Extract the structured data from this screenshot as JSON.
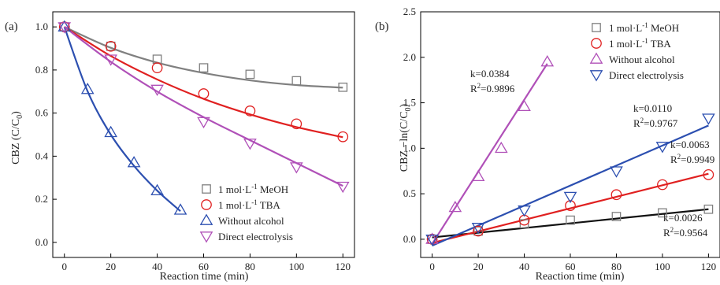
{
  "chart_data": [
    {
      "type": "line",
      "panel_label": "(a)",
      "xlabel": "Reaction time (min)",
      "ylabel_main": "CBZ (C/C",
      "ylabel_sub": "0",
      "ylabel_end": ")",
      "xlim": [
        -5,
        125
      ],
      "ylim": [
        -0.07,
        1.07
      ],
      "xticks": [
        0,
        20,
        40,
        60,
        80,
        100,
        120
      ],
      "xtick_labels": [
        "0",
        "20",
        "40",
        "60",
        "80",
        "100",
        "120"
      ],
      "yticks": [
        0.0,
        0.2,
        0.4,
        0.6,
        0.8,
        1.0
      ],
      "ytick_labels": [
        "0.0",
        "0.2",
        "0.4",
        "0.6",
        "0.8",
        "1.0"
      ],
      "legend_position": "lower-right",
      "series": [
        {
          "name": "1 mol·L",
          "name_sup": "-1",
          "name_end": " MeOH",
          "marker": "square",
          "color": "#808080",
          "x": [
            0,
            20,
            40,
            60,
            80,
            100,
            120
          ],
          "values": [
            1.0,
            0.91,
            0.85,
            0.81,
            0.78,
            0.75,
            0.72
          ],
          "fit": [
            1.0,
            0.903,
            0.834,
            0.786,
            0.752,
            0.73,
            0.718
          ]
        },
        {
          "name": "1 mol·L",
          "name_sup": "-1",
          "name_end": " TBA",
          "marker": "circle",
          "color": "#e02020",
          "x": [
            0,
            20,
            40,
            60,
            80,
            100,
            120
          ],
          "values": [
            1.0,
            0.91,
            0.81,
            0.69,
            0.61,
            0.55,
            0.49
          ],
          "fit": [
            1.0,
            0.865,
            0.756,
            0.666,
            0.594,
            0.535,
            0.488
          ]
        },
        {
          "name": "Without alcohol",
          "name_sup": "",
          "name_end": "",
          "marker": "triangle-up",
          "color": "#2c4fb0",
          "x": [
            0,
            10,
            20,
            30,
            40,
            50
          ],
          "values": [
            1.0,
            0.71,
            0.51,
            0.37,
            0.24,
            0.15
          ],
          "fit": [
            1.0,
            0.701,
            0.5,
            0.355,
            0.24,
            0.145
          ]
        },
        {
          "name": "Direct electrolysis",
          "name_sup": "",
          "name_end": "",
          "marker": "triangle-down",
          "color": "#b050b8",
          "x": [
            0,
            20,
            40,
            60,
            80,
            100,
            120
          ],
          "values": [
            1.0,
            0.85,
            0.71,
            0.56,
            0.46,
            0.35,
            0.26
          ],
          "fit": [
            1.0,
            0.838,
            0.7,
            0.581,
            0.474,
            0.368,
            0.262
          ]
        }
      ]
    },
    {
      "type": "scatter",
      "panel_label": "(b)",
      "xlabel": "Reaction time (min)",
      "ylabel_main": "CBZ  −ln(C/C",
      "ylabel_sub": "0",
      "ylabel_end": ")",
      "xlim": [
        -5,
        125
      ],
      "ylim": [
        -0.2,
        2.5
      ],
      "xticks": [
        0,
        20,
        40,
        60,
        80,
        100,
        120
      ],
      "xtick_labels": [
        "0",
        "20",
        "40",
        "60",
        "80",
        "100",
        "120"
      ],
      "yticks": [
        0.0,
        0.5,
        1.0,
        1.5,
        2.0,
        2.5
      ],
      "ytick_labels": [
        "0.0",
        "0.5",
        "1.0",
        "1.5",
        "2.0",
        "2.5"
      ],
      "legend_position": "top-right",
      "series": [
        {
          "name": "1 mol·L",
          "name_sup": "-1",
          "name_end": " MeOH",
          "marker": "square",
          "color": "#808080",
          "line_color": "#111111",
          "x": [
            0,
            20,
            40,
            60,
            80,
            100,
            120
          ],
          "values": [
            0.0,
            0.09,
            0.17,
            0.21,
            0.25,
            0.29,
            0.33
          ],
          "fit_x": [
            0,
            120
          ],
          "fit_y": [
            0.02,
            0.33
          ]
        },
        {
          "name": "1 mol·L",
          "name_sup": "-1",
          "name_end": " TBA",
          "marker": "circle",
          "color": "#e02020",
          "line_color": "#e02020",
          "x": [
            0,
            20,
            40,
            60,
            80,
            100,
            120
          ],
          "values": [
            0.0,
            0.09,
            0.21,
            0.37,
            0.49,
            0.6,
            0.71
          ],
          "fit_x": [
            0,
            120
          ],
          "fit_y": [
            -0.04,
            0.72
          ]
        },
        {
          "name": "Without alcohol",
          "name_sup": "",
          "name_end": "",
          "marker": "triangle-up",
          "color": "#b050b8",
          "line_color": "#b050b8",
          "x": [
            0,
            10,
            20,
            30,
            40,
            50
          ],
          "values": [
            0.0,
            0.35,
            0.69,
            1.0,
            1.46,
            1.95
          ],
          "fit_x": [
            0,
            50
          ],
          "fit_y": [
            -0.05,
            1.93
          ]
        },
        {
          "name": "Direct electrolysis",
          "name_sup": "",
          "name_end": "",
          "marker": "triangle-down",
          "color": "#2c4fb0",
          "line_color": "#2c4fb0",
          "x": [
            0,
            20,
            40,
            60,
            80,
            100,
            120
          ],
          "values": [
            0.0,
            0.13,
            0.32,
            0.47,
            0.75,
            1.02,
            1.33
          ],
          "fit_x": [
            0,
            120
          ],
          "fit_y": [
            -0.07,
            1.25
          ]
        }
      ],
      "annotations": [
        {
          "k": "k=0.0384",
          "r2": "R",
          "r2_sup": "2",
          "r2_end": "=0.9896"
        },
        {
          "k": "k=0.0110",
          "r2": "R",
          "r2_sup": "2",
          "r2_end": "=0.9767"
        },
        {
          "k": "k=0.0063",
          "r2": "R",
          "r2_sup": "2",
          "r2_end": "=0.9949"
        },
        {
          "k": "k=0.0026",
          "r2": "R",
          "r2_sup": "2",
          "r2_end": "=0.9564"
        }
      ]
    }
  ]
}
